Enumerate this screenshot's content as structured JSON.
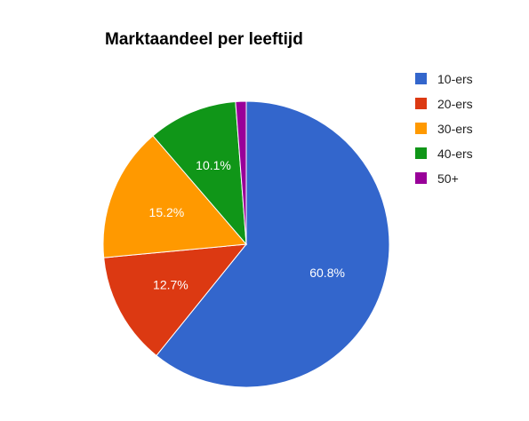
{
  "chart_data": {
    "type": "pie",
    "title": "Marktaandeel per leeftijd",
    "legend_position": "right",
    "slices": [
      {
        "label": "10-ers",
        "value": 60.8,
        "value_label": "60.8%",
        "color": "#3366cc"
      },
      {
        "label": "20-ers",
        "value": 12.7,
        "value_label": "12.7%",
        "color": "#dc3912"
      },
      {
        "label": "30-ers",
        "value": 15.2,
        "value_label": "15.2%",
        "color": "#ff9900"
      },
      {
        "label": "40-ers",
        "value": 10.1,
        "value_label": "10.1%",
        "color": "#109618"
      },
      {
        "label": "50+",
        "value": 1.2,
        "value_label": "",
        "color": "#990099"
      }
    ]
  }
}
